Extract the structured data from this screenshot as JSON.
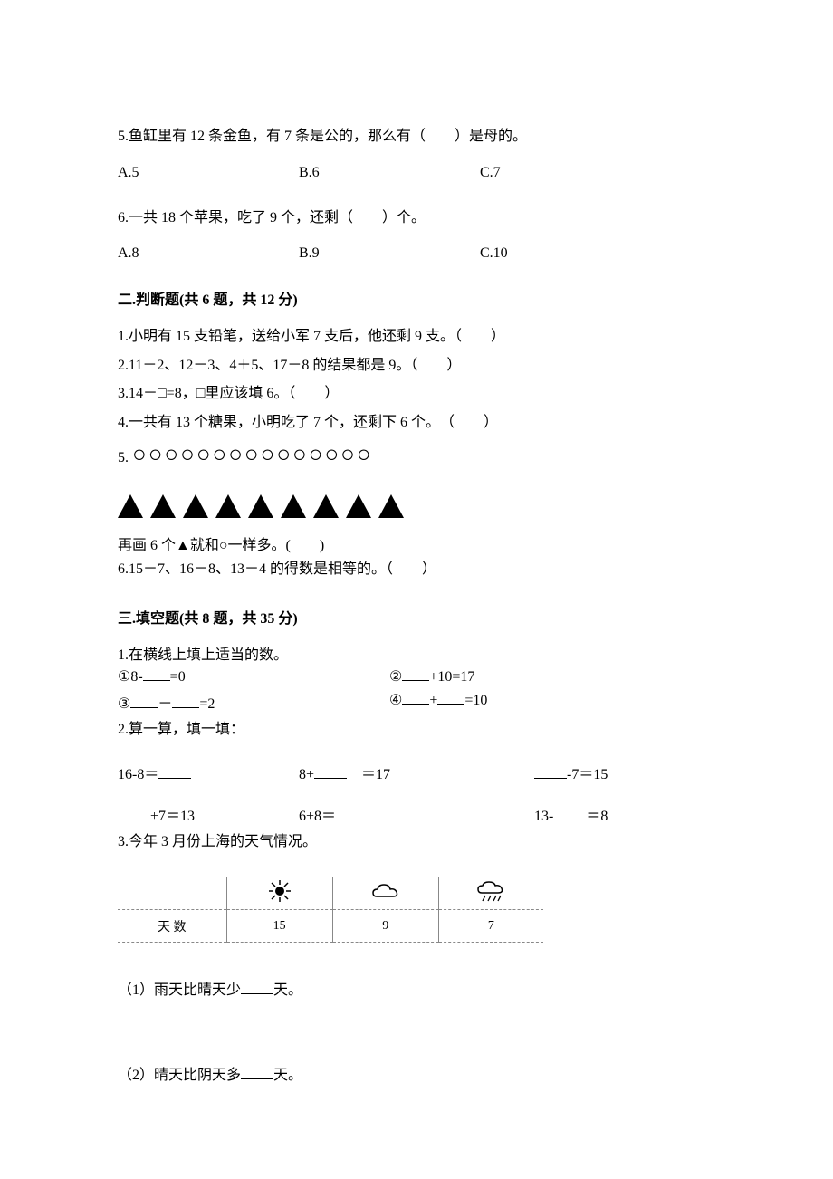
{
  "q5": {
    "text": "5.鱼缸里有 12 条金鱼，有 7 条是公的，那么有（　　）是母的。",
    "a": "A.5",
    "b": "B.6",
    "c": "C.7"
  },
  "q6": {
    "text": "6.一共 18 个苹果，吃了 9 个，还剩（　　）个。",
    "a": "A.8",
    "b": "B.9",
    "c": "C.10"
  },
  "sec2": {
    "title": "二.判断题(共 6 题，共 12 分)"
  },
  "tf": {
    "i1": "1.小明有 15 支铅笔，送给小军 7 支后，他还剩 9 支。（　　）",
    "i2": "2.11－2、12－3、4＋5、17－8 的结果都是 9。（　　）",
    "i3": "3.14－□=8，□里应该填 6。（　　）",
    "i4": "4.一共有 13 个糖果，小明吃了 7 个，还剩下 6 个。　（　　）",
    "i5_prefix": "5.",
    "circles": "○○○○○○○○○○○○○○○",
    "triangle_count": 9,
    "i5_cont": "再画 6 个▲就和○一样多。(　　)",
    "i6": "6.15－7、16－8、13－4 的得数是相等的。（　　）"
  },
  "sec3": {
    "title": "三.填空题(共 8 题，共 35 分)"
  },
  "fill": {
    "q1": "1.在横线上填上适当的数。",
    "r1a_pre": "①8-",
    "r1a_post": "=0",
    "r1b_pre": "②",
    "r1b_post": "+10=17",
    "r2a_pre": "③",
    "r2a_mid": "－",
    "r2a_post": "=2",
    "r2b_pre": "④",
    "r2b_mid": "+",
    "r2b_post": "=10",
    "q2": "2.算一算，填一填：",
    "c1a_pre": "16-8＝",
    "c1b_pre": "8+",
    "c1b_post": "　＝17",
    "c1c_post": "-7＝15",
    "c2a_post": "+7＝13",
    "c2b_pre": "6+8＝",
    "c2c_pre": "13-",
    "c2c_post": "＝8",
    "q3": "3.今年 3 月份上海的天气情况。"
  },
  "weather": {
    "row_label": "天 数",
    "sunny": "15",
    "cloudy": "9",
    "rainy": "7"
  },
  "sub": {
    "s1_pre": "（1）雨天比晴天少",
    "s1_post": "天。",
    "s2_pre": "（2）晴天比阴天多",
    "s2_post": "天。"
  }
}
